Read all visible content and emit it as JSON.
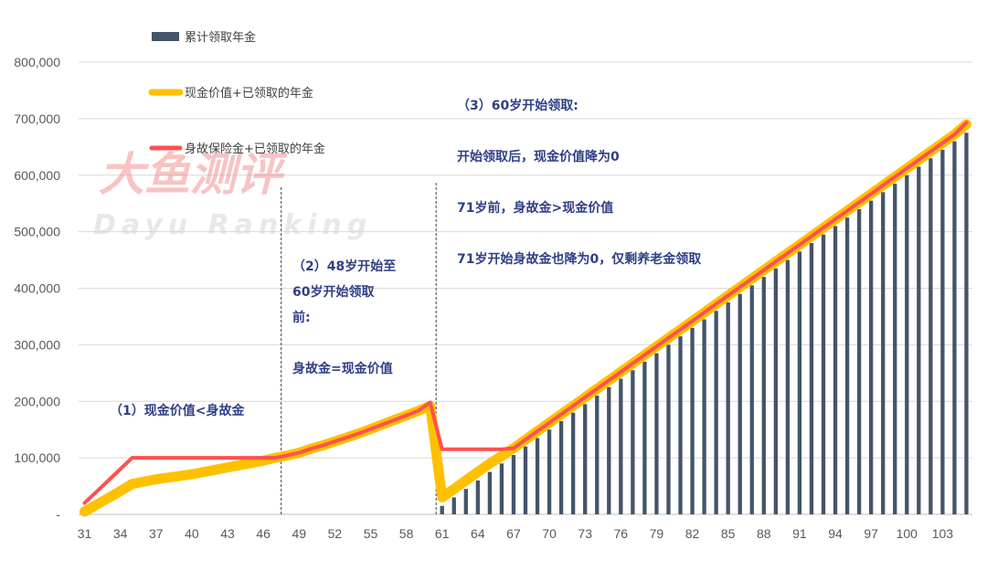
{
  "chart_data": {
    "type": "bar+line",
    "x": [
      31,
      32,
      33,
      34,
      35,
      36,
      37,
      38,
      39,
      40,
      41,
      42,
      43,
      44,
      45,
      46,
      47,
      48,
      49,
      50,
      51,
      52,
      53,
      54,
      55,
      56,
      57,
      58,
      59,
      60,
      61,
      62,
      63,
      64,
      65,
      66,
      67,
      68,
      69,
      70,
      71,
      72,
      73,
      74,
      75,
      76,
      77,
      78,
      79,
      80,
      81,
      82,
      83,
      84,
      85,
      86,
      87,
      88,
      89,
      90,
      91,
      92,
      93,
      94,
      95,
      96,
      97,
      98,
      99,
      100,
      101,
      102,
      103,
      104,
      105
    ],
    "x_tick_labels": [
      "31",
      "34",
      "37",
      "40",
      "43",
      "46",
      "49",
      "52",
      "55",
      "58",
      "61",
      "64",
      "67",
      "70",
      "73",
      "76",
      "79",
      "82",
      "85",
      "88",
      "91",
      "94",
      "97",
      "100",
      "103"
    ],
    "y_tick_labels": [
      "-",
      "100,000",
      "200,000",
      "300,000",
      "400,000",
      "500,000",
      "600,000",
      "700,000",
      "800,000"
    ],
    "ylim": [
      0,
      800000
    ],
    "grid": true,
    "legend_position": "top-left",
    "series": [
      {
        "name": "累计领取年金",
        "kind": "bar",
        "color": "#44546a",
        "values": [
          0,
          0,
          0,
          0,
          0,
          0,
          0,
          0,
          0,
          0,
          0,
          0,
          0,
          0,
          0,
          0,
          0,
          0,
          0,
          0,
          0,
          0,
          0,
          0,
          0,
          0,
          0,
          0,
          0,
          0,
          15000,
          30000,
          45000,
          60000,
          75000,
          90000,
          105000,
          120000,
          135000,
          150000,
          165000,
          180000,
          195000,
          210000,
          225000,
          240000,
          255000,
          270000,
          285000,
          300000,
          315000,
          330000,
          345000,
          360000,
          375000,
          390000,
          405000,
          420000,
          435000,
          450000,
          465000,
          480000,
          495000,
          510000,
          525000,
          540000,
          555000,
          570000,
          585000,
          600000,
          615000,
          630000,
          645000,
          660000,
          675000
        ]
      },
      {
        "name": "现金价值+已领取的年金",
        "kind": "line",
        "color": "#ffc000",
        "values": [
          5000,
          17000,
          29000,
          41000,
          54000,
          58000,
          62000,
          65000,
          68000,
          71000,
          75000,
          79000,
          83000,
          87000,
          91000,
          95000,
          100000,
          104000,
          109000,
          116000,
          122000,
          129000,
          136000,
          143000,
          151000,
          159000,
          167000,
          175000,
          183000,
          192000,
          30000,
          45000,
          60000,
          75000,
          90000,
          103000,
          117000,
          132000,
          147000,
          162000,
          177000,
          192000,
          207000,
          222000,
          237000,
          252000,
          267000,
          282000,
          297000,
          312000,
          327000,
          342000,
          357000,
          372000,
          387000,
          402000,
          417000,
          432000,
          447000,
          462000,
          477000,
          492000,
          507000,
          522000,
          537000,
          552000,
          567000,
          582000,
          597000,
          612000,
          627000,
          642000,
          657000,
          672000,
          690000
        ]
      },
      {
        "name": "身故保险金+已领取的年金",
        "kind": "line",
        "color": "#ff5050",
        "values": [
          20000,
          40000,
          60000,
          80000,
          100000,
          100000,
          100000,
          100000,
          100000,
          100000,
          100000,
          100000,
          100000,
          100000,
          100000,
          100000,
          100000,
          104000,
          109000,
          116000,
          122000,
          129000,
          136000,
          143000,
          151000,
          159000,
          167000,
          175000,
          183000,
          198000,
          115000,
          115000,
          115000,
          115000,
          115000,
          115000,
          117000,
          132000,
          147000,
          162000,
          177000,
          192000,
          207000,
          222000,
          237000,
          252000,
          267000,
          282000,
          297000,
          312000,
          327000,
          342000,
          357000,
          372000,
          387000,
          402000,
          417000,
          432000,
          447000,
          462000,
          477000,
          492000,
          507000,
          522000,
          537000,
          552000,
          567000,
          582000,
          597000,
          612000,
          627000,
          642000,
          657000,
          672000,
          693000
        ]
      }
    ],
    "annotations": [
      {
        "id": "a1",
        "lines": [
          "（1）现金价值<身故金"
        ]
      },
      {
        "id": "a2",
        "lines": [
          "（2）48岁开始至",
          "60岁开始领取",
          "前:",
          "",
          "身故金=现金价值"
        ]
      },
      {
        "id": "a3",
        "lines": [
          "（3）60岁开始领取:",
          "",
          "开始领取后，现金价值降为0",
          "",
          "71岁前，身故金>现金价值",
          "",
          "71岁开始身故金也降为0，仅剩养老金领取"
        ]
      }
    ],
    "vlines_at_x": [
      47.5,
      60.5
    ],
    "watermark": {
      "line1": "大鱼测评",
      "line2": "Dayu Ranking"
    }
  }
}
